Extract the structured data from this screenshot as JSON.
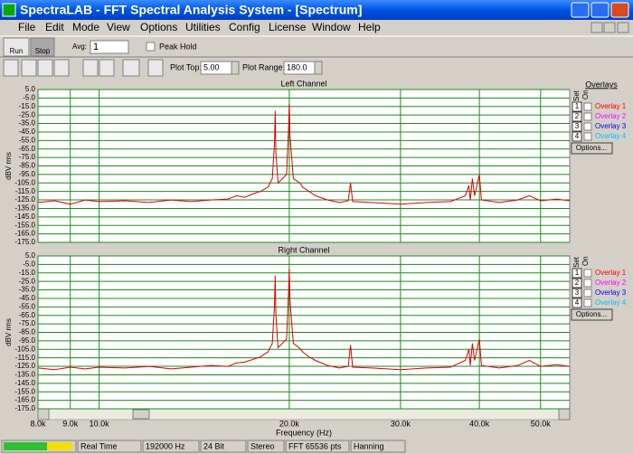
{
  "window": {
    "title": "SpectraLAB - FFT Spectral Analysis System - [Spectrum]"
  },
  "menu": [
    "File",
    "Edit",
    "Mode",
    "View",
    "Options",
    "Utilities",
    "Config",
    "License",
    "Window",
    "Help"
  ],
  "toolbar": {
    "run": "Run",
    "stop": "Stop",
    "avg_label": "Avg:",
    "avg_value": "1",
    "peak_hold": "Peak Hold",
    "plot_top_label": "Plot Top:",
    "plot_top_value": "5.00",
    "plot_range_label": "Plot Range:",
    "plot_range_value": "180.0"
  },
  "panels": [
    {
      "title": "Overlays",
      "set": "Set",
      "on": "On",
      "items": [
        {
          "number": "1",
          "label": "Overlay 1",
          "color": "#ff0000"
        },
        {
          "number": "2",
          "label": "Overlay 2",
          "color": "#ff00ff"
        },
        {
          "number": "3",
          "label": "Overlay 3",
          "color": "#0000ff"
        },
        {
          "number": "4",
          "label": "Overlay 4",
          "color": "#00c0ff"
        }
      ],
      "options": "Options..."
    },
    {
      "set": "Set",
      "on": "On",
      "items": [
        {
          "number": "1",
          "label": "Overlay 1",
          "color": "#ff0000"
        },
        {
          "number": "2",
          "label": "Overlay 2",
          "color": "#ff00ff"
        },
        {
          "number": "3",
          "label": "Overlay 3",
          "color": "#0000ff"
        },
        {
          "number": "4",
          "label": "Overlay 4",
          "color": "#00c0ff"
        }
      ],
      "options": "Options..."
    }
  ],
  "chart_data": [
    {
      "type": "line",
      "title": "Left Channel",
      "y_label": "dBV rms",
      "log_x": true,
      "grid": true,
      "x": [
        8000,
        8500,
        9000,
        9500,
        10000,
        11000,
        12000,
        13000,
        14000,
        15000,
        16000,
        16500,
        17000,
        17500,
        18000,
        18500,
        18800,
        18950,
        19000,
        19050,
        19200,
        19500,
        19800,
        19950,
        20000,
        20050,
        20300,
        20800,
        21000,
        21500,
        22000,
        23000,
        24000,
        24800,
        25000,
        25200,
        27000,
        30000,
        33000,
        36000,
        38000,
        38500,
        38700,
        39000,
        39300,
        40000,
        40300,
        43000,
        46000,
        48000,
        50000,
        53000,
        55600
      ],
      "series": [
        {
          "color": "#e00000",
          "values": [
            -128,
            -126,
            -130,
            -125,
            -127,
            -126,
            -128,
            -125,
            -127,
            -125,
            -124,
            -120,
            -122,
            -118,
            -115,
            -110,
            -100,
            -60,
            -20,
            -70,
            -105,
            -100,
            -95,
            -40,
            -12,
            -50,
            -100,
            -105,
            -110,
            -115,
            -120,
            -125,
            -128,
            -126,
            -105,
            -127,
            -128,
            -130,
            -128,
            -127,
            -120,
            -108,
            -125,
            -100,
            -120,
            -95,
            -125,
            -128,
            -125,
            -120,
            -126,
            -124,
            -126
          ]
        }
      ],
      "xlim": [
        8000,
        55600
      ],
      "ylim": [
        -175,
        5
      ],
      "yticks": [
        {
          "value": 5,
          "label": "5.0"
        },
        {
          "value": -5,
          "label": "-5.0"
        },
        {
          "value": -15,
          "label": "-15.0"
        },
        {
          "value": -25,
          "label": "-25.0"
        },
        {
          "value": -35,
          "label": "-35.0"
        },
        {
          "value": -45,
          "label": "-45.0"
        },
        {
          "value": -55,
          "label": "-55.0"
        },
        {
          "value": -65,
          "label": "-65.0"
        },
        {
          "value": -75,
          "label": "-75.0"
        },
        {
          "value": -85,
          "label": "-85.0"
        },
        {
          "value": -95,
          "label": "-95.0"
        },
        {
          "value": -105,
          "label": "-105.0"
        },
        {
          "value": -115,
          "label": "-115.0"
        },
        {
          "value": -125,
          "label": "-125.0"
        },
        {
          "value": -135,
          "label": "-135.0"
        },
        {
          "value": -145,
          "label": "-145.0"
        },
        {
          "value": -155,
          "label": "-155.0"
        },
        {
          "value": -165,
          "label": "-165.0"
        },
        {
          "value": -175,
          "label": "-175.0"
        }
      ]
    },
    {
      "type": "line",
      "title": "Right Channel",
      "y_label": "dBV rms",
      "x_label": "Frequency (Hz)",
      "log_x": true,
      "grid": true,
      "x": [
        8000,
        8500,
        9000,
        9500,
        10000,
        11000,
        12000,
        13000,
        14000,
        15000,
        16000,
        16500,
        17000,
        17500,
        18000,
        18500,
        18800,
        18950,
        19000,
        19050,
        19200,
        19500,
        19800,
        19950,
        20000,
        20050,
        20300,
        20800,
        21000,
        21500,
        22000,
        23000,
        24000,
        24800,
        25000,
        25200,
        27000,
        30000,
        33000,
        36000,
        38000,
        38500,
        38700,
        39000,
        39300,
        40000,
        40300,
        43000,
        46000,
        48000,
        50000,
        53000,
        55600
      ],
      "series": [
        {
          "color": "#e00000",
          "values": [
            -127,
            -129,
            -126,
            -128,
            -126,
            -127,
            -125,
            -128,
            -126,
            -124,
            -125,
            -121,
            -120,
            -117,
            -114,
            -108,
            -98,
            -55,
            -18,
            -65,
            -103,
            -98,
            -93,
            -38,
            -10,
            -48,
            -98,
            -104,
            -108,
            -114,
            -118,
            -124,
            -127,
            -125,
            -100,
            -126,
            -127,
            -129,
            -127,
            -126,
            -118,
            -105,
            -124,
            -98,
            -118,
            -93,
            -124,
            -127,
            -124,
            -118,
            -125,
            -123,
            -125
          ]
        }
      ],
      "xlim": [
        8000,
        55600
      ],
      "ylim": [
        -175,
        5
      ],
      "xticks": [
        {
          "value": 8000,
          "label": "8.0k"
        },
        {
          "value": 9000,
          "label": "9.0k"
        },
        {
          "value": 10000,
          "label": "10.0k"
        },
        {
          "value": 20000,
          "label": "20.0k"
        },
        {
          "value": 30000,
          "label": "30.0k"
        },
        {
          "value": 40000,
          "label": "40.0k"
        },
        {
          "value": 50000,
          "label": "50.0k"
        }
      ],
      "yticks": [
        {
          "value": 5,
          "label": "5.0"
        },
        {
          "value": -5,
          "label": "-5.0"
        },
        {
          "value": -15,
          "label": "-15.0"
        },
        {
          "value": -25,
          "label": "-25.0"
        },
        {
          "value": -35,
          "label": "-35.0"
        },
        {
          "value": -45,
          "label": "-45.0"
        },
        {
          "value": -55,
          "label": "-55.0"
        },
        {
          "value": -65,
          "label": "-65.0"
        },
        {
          "value": -75,
          "label": "-75.0"
        },
        {
          "value": -85,
          "label": "-85.0"
        },
        {
          "value": -95,
          "label": "-95.0"
        },
        {
          "value": -105,
          "label": "-105.0"
        },
        {
          "value": -115,
          "label": "-115.0"
        },
        {
          "value": -125,
          "label": "-125.0"
        },
        {
          "value": -135,
          "label": "-135.0"
        },
        {
          "value": -145,
          "label": "-145.0"
        },
        {
          "value": -155,
          "label": "-155.0"
        },
        {
          "value": -165,
          "label": "-165.0"
        },
        {
          "value": -175,
          "label": "-175.0"
        }
      ]
    }
  ],
  "status": [
    "Real Time",
    "192000 Hz",
    "24 Bit",
    "Stereo",
    "FFT 65536 pts",
    "Hanning"
  ]
}
